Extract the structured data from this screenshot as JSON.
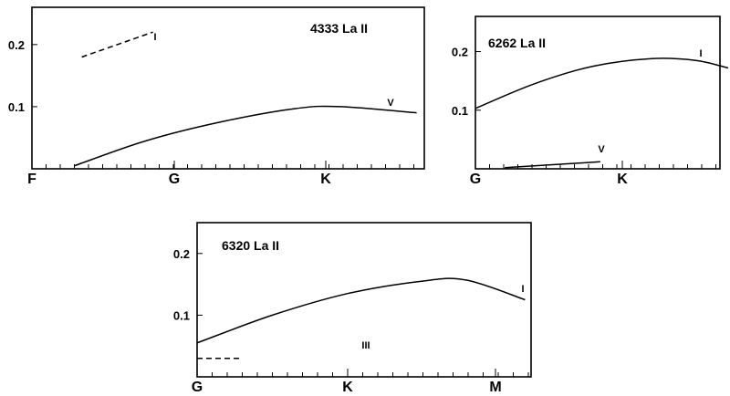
{
  "chart_data": [
    {
      "type": "line",
      "title": "4333 La II",
      "x_categories": [
        "F",
        "G",
        "K"
      ],
      "y_ticks": [
        "0.2",
        "0.1"
      ],
      "ylim": [
        0,
        0.26
      ],
      "series": [
        {
          "name": "I",
          "style": "dashed",
          "x": [
            0.35,
            0.85
          ],
          "y": [
            0.18,
            0.22
          ]
        },
        {
          "name": "V",
          "style": "solid",
          "x": [
            0.3,
            0.8,
            1.3,
            1.8,
            2.1,
            2.6
          ],
          "y": [
            0.005,
            0.045,
            0.075,
            0.097,
            0.1,
            0.09
          ]
        }
      ]
    },
    {
      "type": "line",
      "title": "6262 La II",
      "x_categories": [
        "G",
        "K"
      ],
      "y_ticks": [
        "0.2",
        "0.1"
      ],
      "ylim": [
        0,
        0.26
      ],
      "series": [
        {
          "name": "I",
          "style": "solid",
          "x": [
            0,
            0.4,
            0.8,
            1.2,
            1.5,
            1.72
          ],
          "y": [
            0.103,
            0.145,
            0.175,
            0.188,
            0.185,
            0.172
          ]
        },
        {
          "name": "V",
          "style": "solid",
          "x": [
            0.2,
            0.85
          ],
          "y": [
            0.002,
            0.012
          ]
        }
      ]
    },
    {
      "type": "line",
      "title": "6320 La II",
      "x_categories": [
        "G",
        "K",
        "M"
      ],
      "y_ticks": [
        "0.2",
        "0.1"
      ],
      "ylim": [
        0,
        0.25
      ],
      "series": [
        {
          "name": "I",
          "style": "solid",
          "x": [
            0,
            0.5,
            1,
            1.5,
            1.8,
            2.2
          ],
          "y": [
            0.055,
            0.1,
            0.135,
            0.155,
            0.157,
            0.125
          ]
        },
        {
          "name": "III",
          "style": "dashed",
          "x": [
            0,
            0.3
          ],
          "y": [
            0.03,
            0.03
          ]
        }
      ]
    }
  ]
}
